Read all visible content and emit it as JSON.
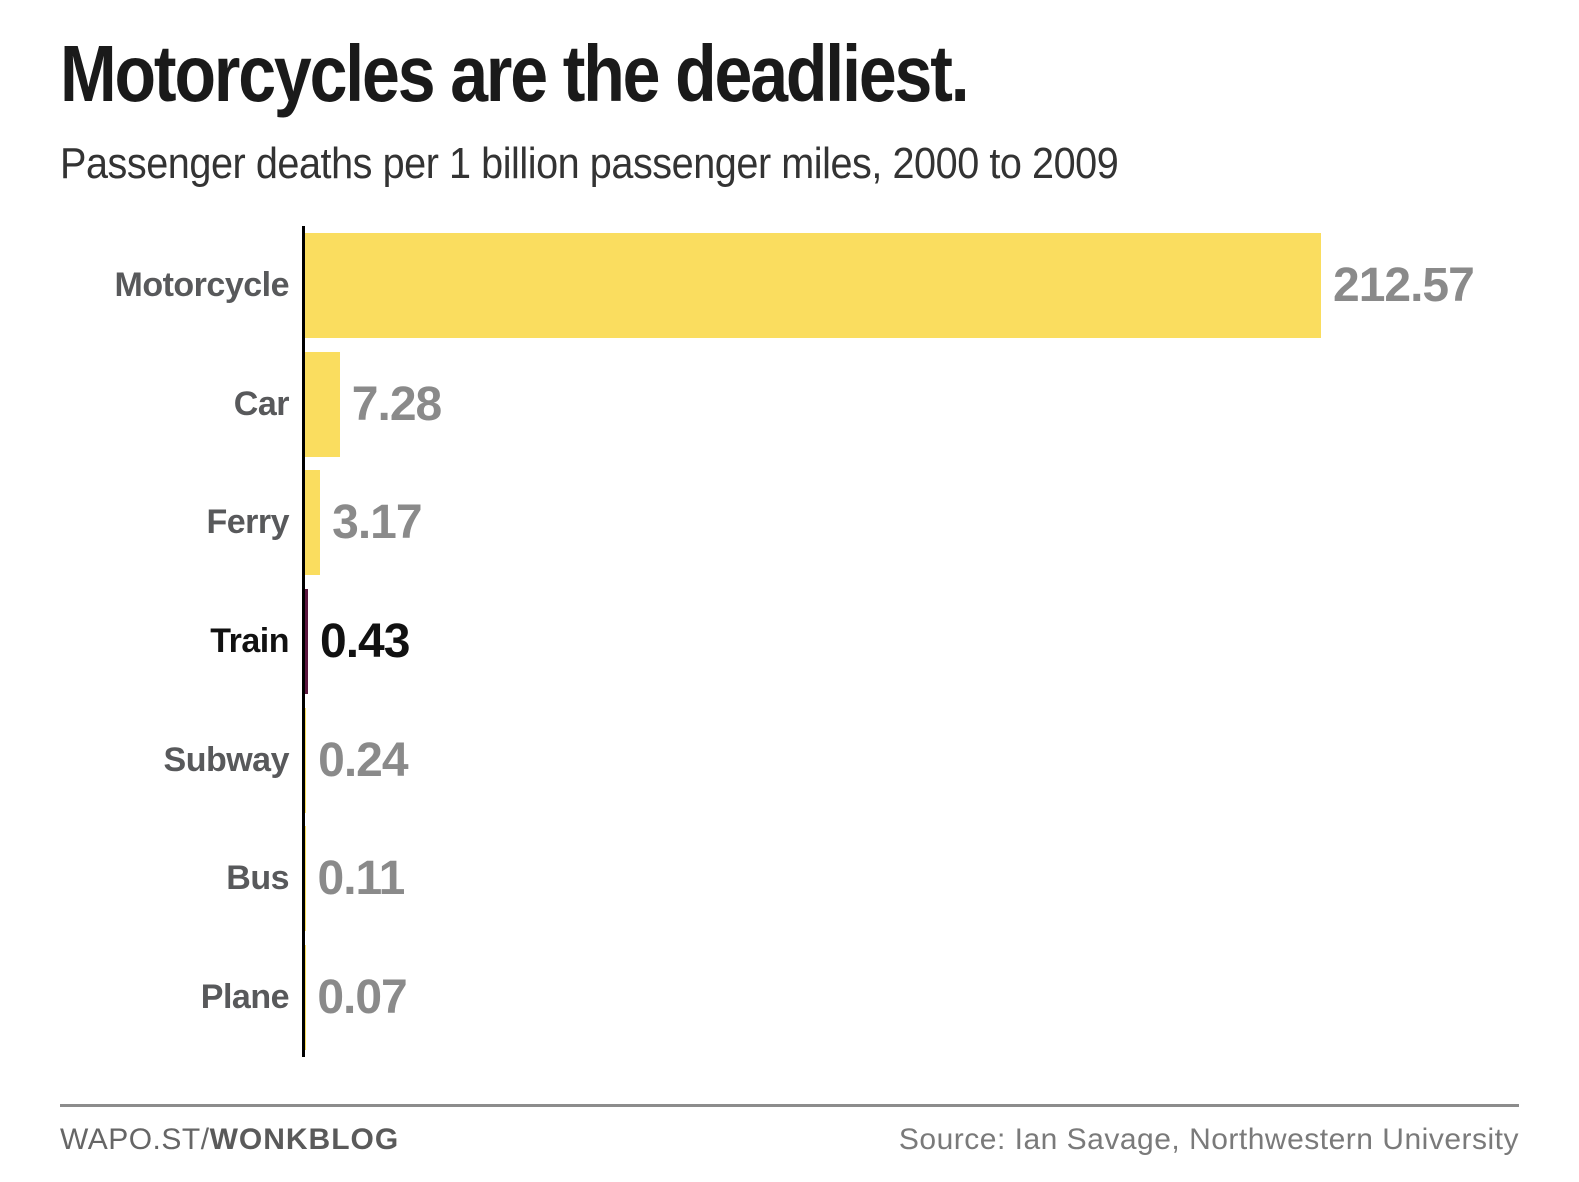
{
  "header": {
    "title": "Motorcycles are the deadliest.",
    "subtitle": "Passenger deaths per 1 billion passenger miles, 2000 to 2009"
  },
  "chart_data": {
    "type": "bar",
    "orientation": "horizontal",
    "title": "Motorcycles are the deadliest.",
    "subtitle": "Passenger deaths per 1 billion passenger miles, 2000 to 2009",
    "categories": [
      "Motorcycle",
      "Car",
      "Ferry",
      "Train",
      "Subway",
      "Bus",
      "Plane"
    ],
    "values": [
      212.57,
      7.28,
      3.17,
      0.43,
      0.24,
      0.11,
      0.07
    ],
    "value_labels": [
      "212.57",
      "7.28",
      "3.17",
      "0.43",
      "0.24",
      "0.11",
      "0.07"
    ],
    "highlighted_category": "Train",
    "xlabel": "",
    "ylabel": "",
    "xlim": [
      0,
      212.57
    ],
    "grid": false,
    "legend": "none",
    "colors": {
      "bar": "#FADD5F",
      "highlight_bar": "#5B173F",
      "label_text": "#58595B",
      "value_text": "#8A8A8A",
      "highlight_text": "#111111",
      "axis": "#000000"
    }
  },
  "footer": {
    "brand_regular": "WAPO.ST/",
    "brand_bold": "WONKBLOG",
    "source": "Source: Ian Savage, Northwestern University"
  }
}
